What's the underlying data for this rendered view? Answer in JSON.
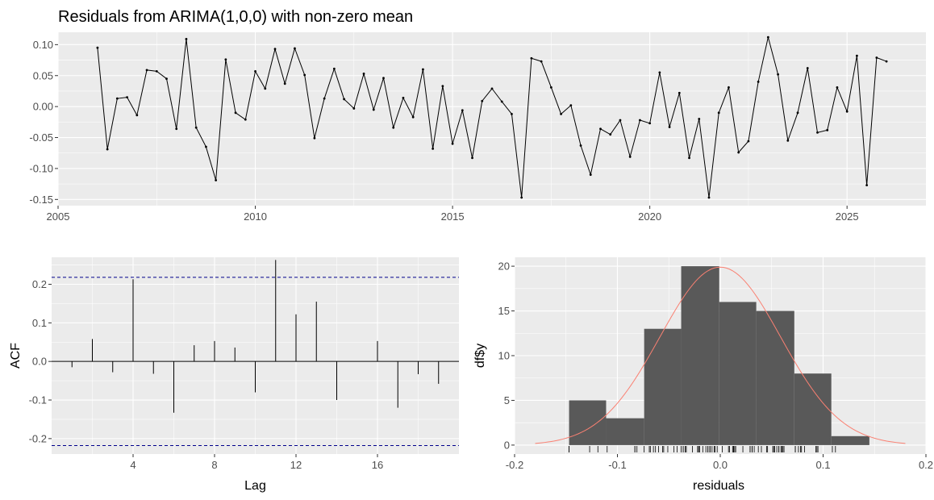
{
  "title": "Residuals from ARIMA(1,0,0) with non-zero mean",
  "chart_data": [
    {
      "type": "line",
      "title": "Residuals from ARIMA(1,0,0) with non-zero mean",
      "xlabel": "",
      "ylabel": "",
      "xlim": [
        2005,
        2027
      ],
      "ylim": [
        -0.16,
        0.12
      ],
      "x_ticks": [
        2005,
        2010,
        2015,
        2020,
        2025
      ],
      "x_tick_labels": [
        "2005",
        "2010",
        "2015",
        "2020",
        "2025"
      ],
      "y_ticks": [
        0.1,
        0.05,
        0.0,
        -0.05,
        -0.1,
        -0.15
      ],
      "y_tick_labels": [
        "0.10",
        "0.05",
        "0.00",
        "-0.05",
        "-0.10",
        "-0.15"
      ],
      "grid": true,
      "line_color": "#000000",
      "x": [
        2006.0,
        2006.25,
        2006.5,
        2006.75,
        2007.0,
        2007.25,
        2007.5,
        2007.75,
        2008.0,
        2008.25,
        2008.5,
        2008.75,
        2009.0,
        2009.25,
        2009.5,
        2009.75,
        2010.0,
        2010.25,
        2010.5,
        2010.75,
        2011.0,
        2011.25,
        2011.5,
        2011.75,
        2012.0,
        2012.25,
        2012.5,
        2012.75,
        2013.0,
        2013.25,
        2013.5,
        2013.75,
        2014.0,
        2014.25,
        2014.5,
        2014.75,
        2015.0,
        2015.25,
        2015.5,
        2015.75,
        2016.0,
        2016.25,
        2016.5,
        2016.75,
        2017.0,
        2017.25,
        2017.5,
        2017.75,
        2018.0,
        2018.25,
        2018.5,
        2018.75,
        2019.0,
        2019.25,
        2019.5,
        2019.75,
        2020.0,
        2020.25,
        2020.5,
        2020.75,
        2021.0,
        2021.25,
        2021.5,
        2021.75,
        2022.0,
        2022.25,
        2022.5,
        2022.75,
        2023.0,
        2023.25,
        2023.5,
        2023.75,
        2024.0,
        2024.25,
        2024.5,
        2024.75,
        2025.0,
        2025.25,
        2025.5,
        2025.75,
        2026.0
      ],
      "y": [
        0.095,
        -0.069,
        0.013,
        0.015,
        -0.014,
        0.059,
        0.057,
        0.045,
        -0.036,
        0.109,
        -0.034,
        -0.065,
        -0.119,
        0.076,
        -0.01,
        -0.021,
        0.057,
        0.029,
        0.093,
        0.037,
        0.094,
        0.051,
        -0.051,
        0.013,
        0.061,
        0.012,
        -0.003,
        0.053,
        -0.005,
        0.046,
        -0.034,
        0.014,
        -0.017,
        0.06,
        -0.068,
        0.033,
        -0.06,
        -0.006,
        -0.083,
        0.009,
        0.029,
        0.008,
        -0.012,
        -0.147,
        0.078,
        0.073,
        0.031,
        -0.012,
        0.002,
        -0.063,
        -0.11,
        -0.036,
        -0.045,
        -0.022,
        -0.081,
        -0.022,
        -0.027,
        0.055,
        -0.033,
        0.022,
        -0.083,
        -0.02,
        -0.147,
        -0.01,
        0.031,
        -0.074,
        -0.056,
        0.04,
        0.112,
        0.052,
        -0.055,
        -0.01,
        0.062,
        -0.042,
        -0.038,
        0.031,
        -0.008,
        0.082,
        -0.127,
        0.079,
        0.073
      ]
    },
    {
      "type": "bar",
      "xlabel": "Lag",
      "ylabel": "ACF",
      "xlim": [
        0.0,
        20.0
      ],
      "ylim": [
        -0.24,
        0.27
      ],
      "x_ticks": [
        4,
        8,
        12,
        16
      ],
      "x_tick_labels": [
        "4",
        "8",
        "12",
        "16"
      ],
      "y_ticks": [
        0.2,
        0.1,
        0.0,
        -0.1,
        -0.2
      ],
      "y_tick_labels": [
        "0.2",
        "0.1",
        "0.0",
        "-0.1",
        "-0.2"
      ],
      "grid": true,
      "categories": [
        1,
        2,
        3,
        4,
        5,
        6,
        7,
        8,
        9,
        10,
        11,
        12,
        13,
        14,
        15,
        16,
        17,
        18,
        19
      ],
      "values": [
        -0.015,
        0.058,
        -0.028,
        0.213,
        -0.032,
        -0.133,
        0.042,
        0.053,
        0.036,
        -0.08,
        0.263,
        0.122,
        0.155,
        -0.1,
        0.0,
        0.053,
        -0.12,
        -0.033,
        -0.058
      ],
      "confidence_bounds": [
        0.218,
        -0.218
      ],
      "confidence_color": "#00008b"
    },
    {
      "type": "bar",
      "subtype": "histogram",
      "xlabel": "residuals",
      "ylabel": "df$y",
      "xlim": [
        -0.2,
        0.2
      ],
      "ylim": [
        -1.0,
        21.0
      ],
      "x_ticks": [
        -0.2,
        -0.1,
        0.0,
        0.1,
        0.2
      ],
      "x_tick_labels": [
        "-0.2",
        "-0.1",
        "0.0",
        "0.1",
        "0.2"
      ],
      "y_ticks": [
        20,
        15,
        10,
        5,
        0
      ],
      "y_tick_labels": [
        "20",
        "15",
        "10",
        "5",
        "0"
      ],
      "grid": true,
      "bin_edges": [
        -0.147,
        -0.111,
        -0.074,
        -0.038,
        -0.001,
        0.035,
        0.072,
        0.108,
        0.145
      ],
      "values": [
        5,
        3,
        13,
        20,
        16,
        15,
        8,
        1
      ],
      "bar_color": "#595959",
      "density_curve": {
        "color": "#fa8072",
        "mean": 0.0,
        "sd": 0.0588,
        "peak": 19.9,
        "range": [
          -0.18,
          0.18
        ]
      }
    }
  ]
}
